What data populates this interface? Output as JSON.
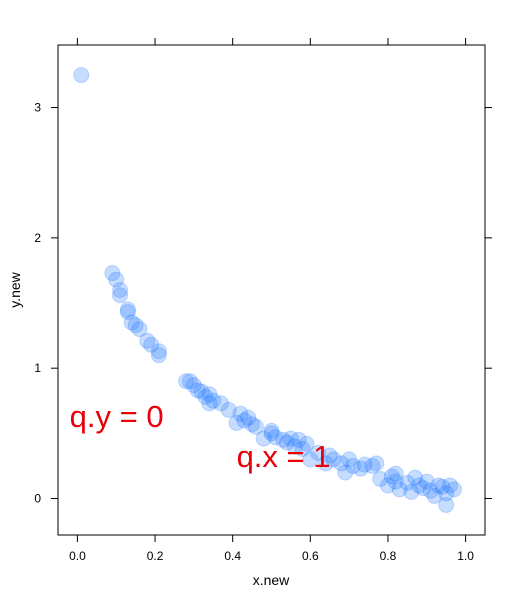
{
  "chart_data": {
    "type": "scatter",
    "title": "",
    "xlabel": "x.new",
    "ylabel": "y.new",
    "xlim": [
      -0.05,
      1.05
    ],
    "ylim": [
      -0.28,
      3.48
    ],
    "xticks": [
      0.0,
      0.2,
      0.4,
      0.6,
      0.8,
      1.0
    ],
    "xtick_labels": [
      "0.0",
      "0.2",
      "0.4",
      "0.6",
      "0.8",
      "1.0"
    ],
    "yticks": [
      0,
      1,
      2,
      3
    ],
    "ytick_labels": [
      "0",
      "1",
      "2",
      "3"
    ],
    "grid": false,
    "legend": "none",
    "point_color": "#1E78FF",
    "point_opacity": 0.25,
    "annotation_color": "#E8000B",
    "annotations": [
      {
        "text": "q.y = 0",
        "x": -0.02,
        "y": 0.55
      },
      {
        "text": "q.x = 1",
        "x": 0.41,
        "y": 0.24
      }
    ],
    "x": [
      0.01,
      0.09,
      0.1,
      0.11,
      0.11,
      0.13,
      0.13,
      0.14,
      0.15,
      0.16,
      0.18,
      0.19,
      0.21,
      0.21,
      0.28,
      0.29,
      0.3,
      0.31,
      0.32,
      0.33,
      0.34,
      0.34,
      0.35,
      0.37,
      0.39,
      0.41,
      0.42,
      0.43,
      0.44,
      0.45,
      0.46,
      0.48,
      0.5,
      0.5,
      0.51,
      0.53,
      0.54,
      0.55,
      0.56,
      0.57,
      0.58,
      0.59,
      0.6,
      0.62,
      0.64,
      0.65,
      0.66,
      0.68,
      0.69,
      0.7,
      0.71,
      0.73,
      0.74,
      0.76,
      0.77,
      0.78,
      0.8,
      0.81,
      0.82,
      0.82,
      0.83,
      0.85,
      0.86,
      0.87,
      0.88,
      0.89,
      0.9,
      0.91,
      0.92,
      0.93,
      0.94,
      0.95,
      0.95,
      0.96,
      0.97
    ],
    "y": [
      3.25,
      1.73,
      1.68,
      1.6,
      1.56,
      1.45,
      1.43,
      1.35,
      1.33,
      1.3,
      1.21,
      1.18,
      1.13,
      1.1,
      0.9,
      0.9,
      0.87,
      0.83,
      0.82,
      0.78,
      0.73,
      0.8,
      0.75,
      0.73,
      0.68,
      0.58,
      0.65,
      0.6,
      0.62,
      0.57,
      0.55,
      0.46,
      0.5,
      0.52,
      0.47,
      0.45,
      0.43,
      0.46,
      0.4,
      0.45,
      0.38,
      0.42,
      0.3,
      0.35,
      0.27,
      0.33,
      0.3,
      0.27,
      0.2,
      0.3,
      0.25,
      0.23,
      0.26,
      0.25,
      0.27,
      0.15,
      0.1,
      0.17,
      0.13,
      0.19,
      0.07,
      0.12,
      0.05,
      0.16,
      0.1,
      0.08,
      0.13,
      0.06,
      0.02,
      0.1,
      0.09,
      -0.05,
      0.04,
      0.1,
      0.07
    ]
  }
}
